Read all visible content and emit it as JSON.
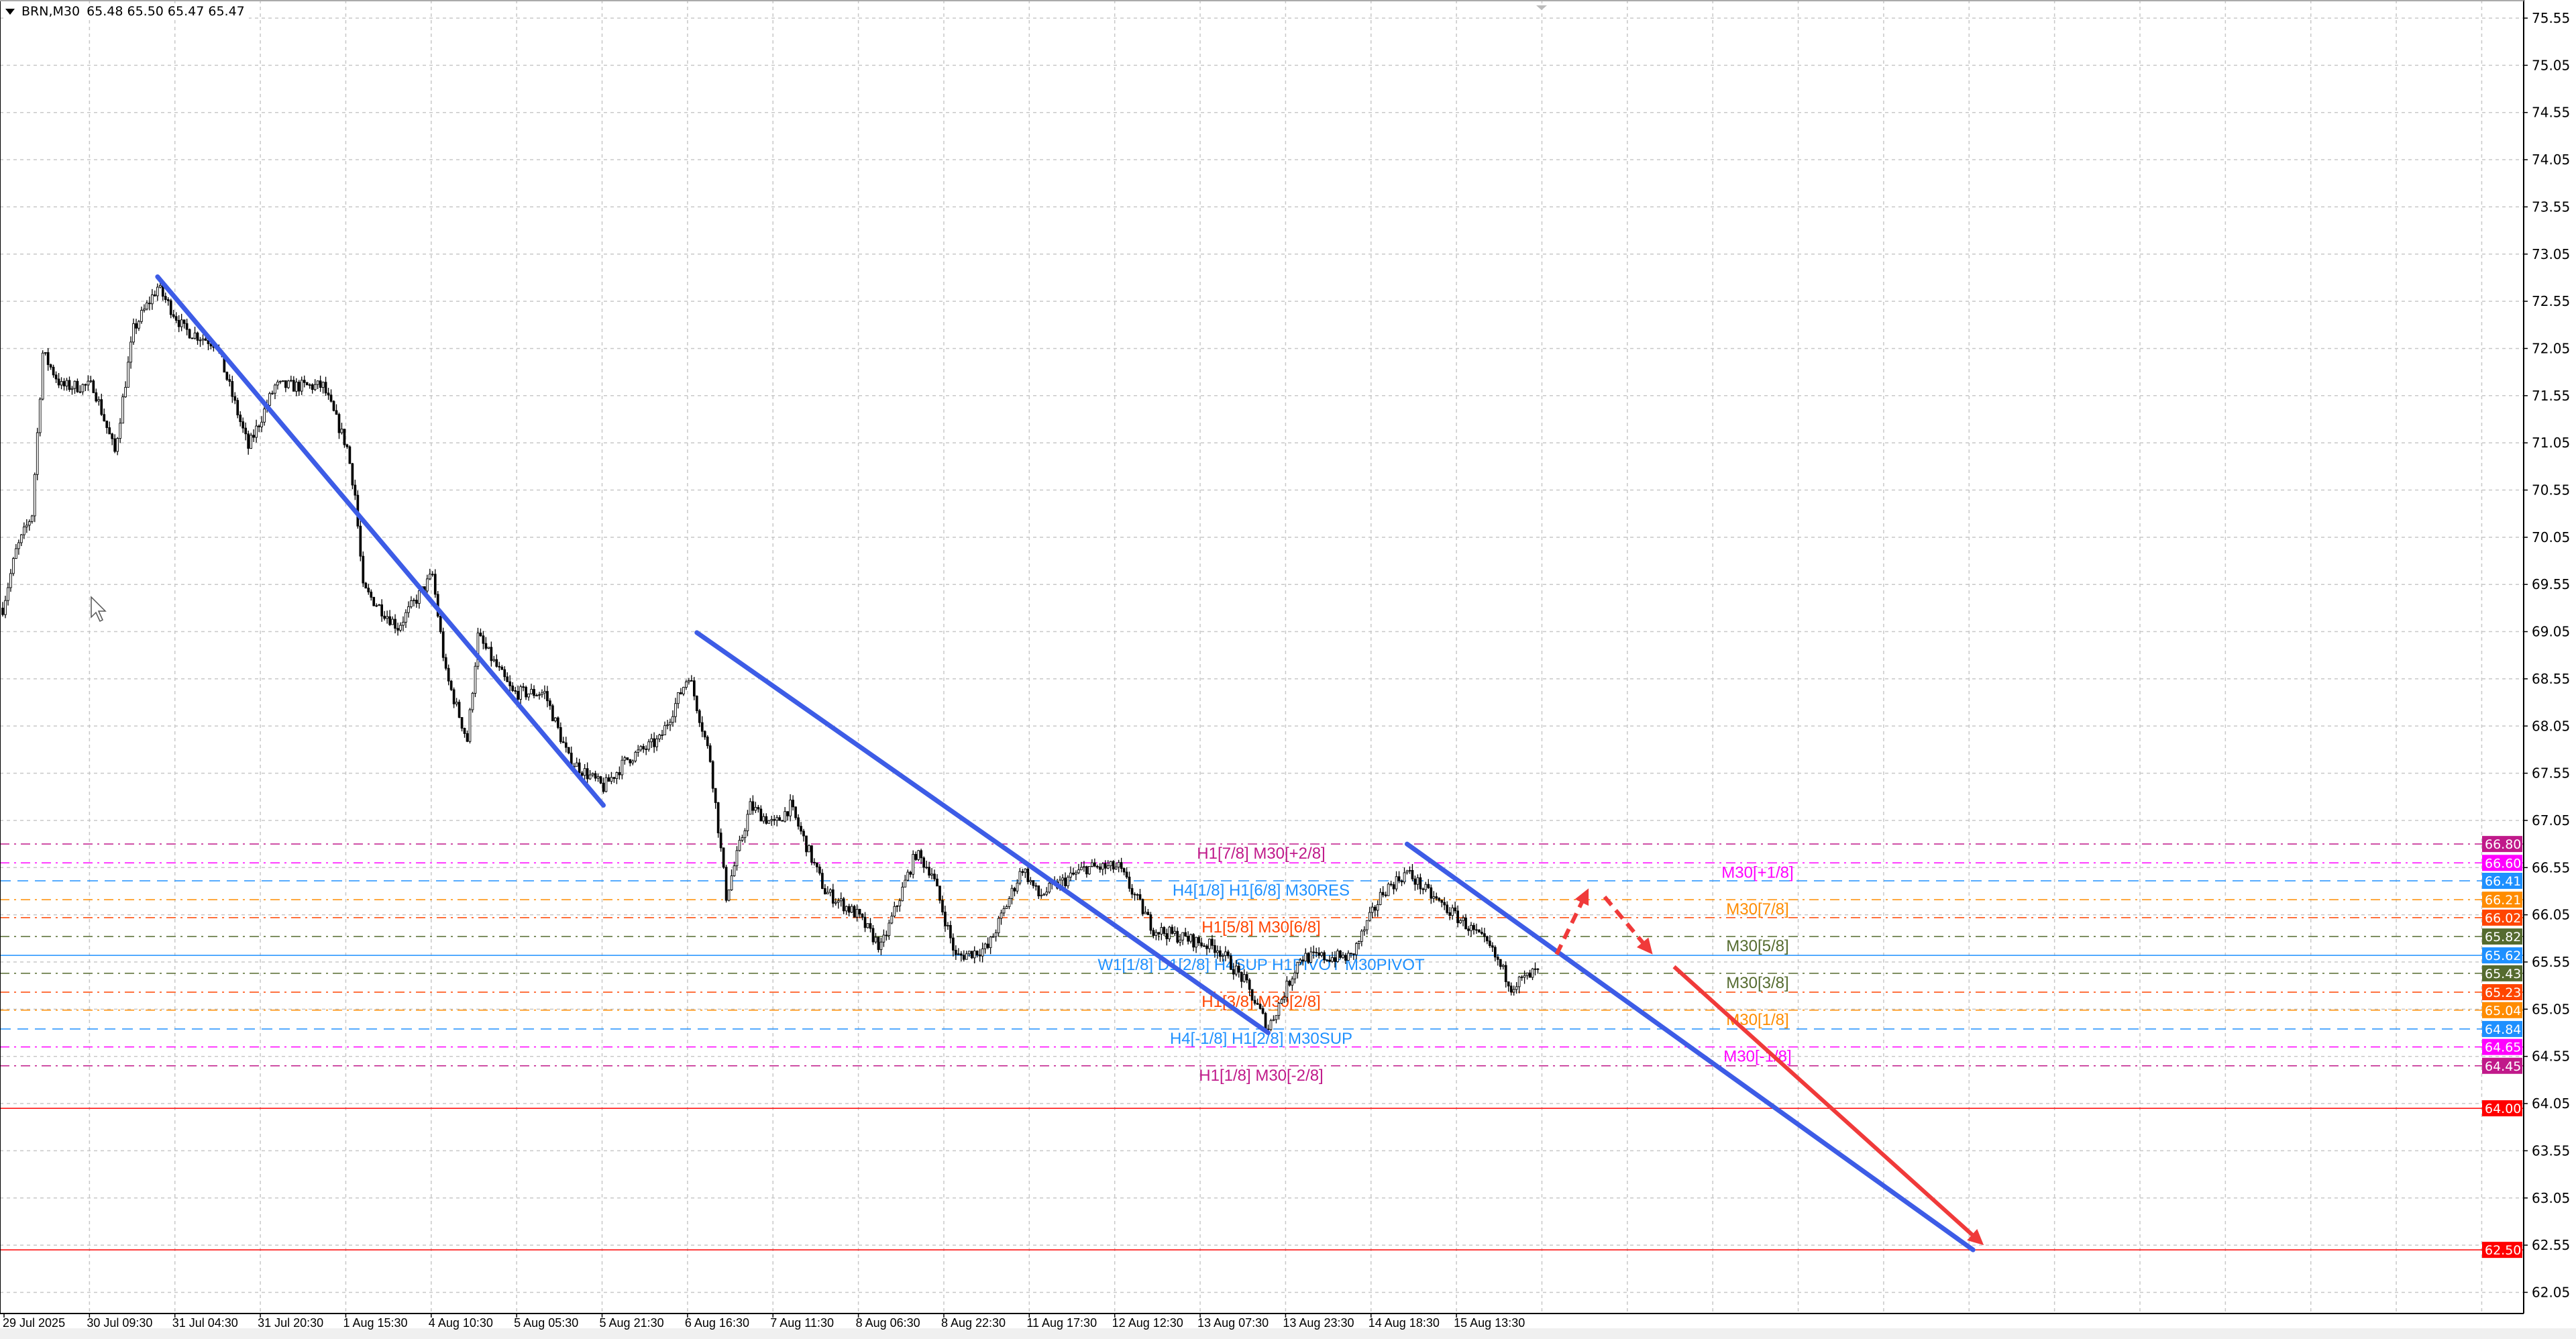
{
  "header": {
    "symbol": "BRN,M30",
    "ohlc": "65.48 65.50 65.47 65.47"
  },
  "colors": {
    "background": "#ffffff",
    "grid": "#c8c8c8",
    "trendline": "#3d5ce6",
    "arrow": "#f03a3a",
    "bull_body": "#ffffff",
    "bear_body": "#000000",
    "outline": "#000000"
  },
  "chart_data": {
    "type": "candlestick",
    "timeframe": "M30",
    "y_ticks": [
      "75.55",
      "75.05",
      "74.55",
      "74.05",
      "73.55",
      "73.05",
      "72.55",
      "72.05",
      "71.55",
      "71.05",
      "70.55",
      "70.05",
      "69.55",
      "69.05",
      "68.55",
      "68.05",
      "67.55",
      "67.05",
      "66.55",
      "66.05",
      "65.55",
      "65.05",
      "64.55",
      "64.05",
      "63.55",
      "63.05",
      "62.55",
      "62.05"
    ],
    "ylim": [
      61.95,
      75.6
    ],
    "x_ticks": [
      "29 Jul 2025",
      "30 Jul 09:30",
      "31 Jul 04:30",
      "31 Jul 20:30",
      "1 Aug 15:30",
      "4 Aug 10:30",
      "5 Aug 05:30",
      "5 Aug 21:30",
      "6 Aug 16:30",
      "7 Aug 11:30",
      "8 Aug 06:30",
      "8 Aug 22:30",
      "11 Aug 17:30",
      "12 Aug 12:30",
      "13 Aug 07:30",
      "13 Aug 23:30",
      "14 Aug 18:30",
      "15 Aug 13:30"
    ],
    "bars_per_x_tick": 32,
    "grid": true,
    "price_path": [
      [
        0,
        69.3
      ],
      [
        5,
        69.9
      ],
      [
        11,
        70.3
      ],
      [
        15,
        72.0
      ],
      [
        22,
        71.65
      ],
      [
        34,
        71.65
      ],
      [
        42,
        70.95
      ],
      [
        49,
        72.25
      ],
      [
        58,
        72.7
      ],
      [
        68,
        72.25
      ],
      [
        80,
        72.1
      ],
      [
        92,
        71.0
      ],
      [
        102,
        71.65
      ],
      [
        120,
        71.65
      ],
      [
        129,
        71.0
      ],
      [
        132,
        70.5
      ],
      [
        135,
        69.5
      ],
      [
        148,
        69.1
      ],
      [
        161,
        69.65
      ],
      [
        166,
        68.6
      ],
      [
        174,
        67.9
      ],
      [
        178,
        69.0
      ],
      [
        191,
        68.4
      ],
      [
        203,
        68.4
      ],
      [
        212,
        67.7
      ],
      [
        225,
        67.4
      ],
      [
        234,
        67.7
      ],
      [
        246,
        67.9
      ],
      [
        257,
        68.6
      ],
      [
        265,
        67.7
      ],
      [
        271,
        66.25
      ],
      [
        280,
        67.2
      ],
      [
        289,
        67.0
      ],
      [
        295,
        67.2
      ],
      [
        308,
        66.3
      ],
      [
        320,
        66.05
      ],
      [
        329,
        65.7
      ],
      [
        342,
        66.7
      ],
      [
        348,
        66.5
      ],
      [
        357,
        65.6
      ],
      [
        369,
        65.7
      ],
      [
        382,
        66.55
      ],
      [
        388,
        66.25
      ],
      [
        406,
        66.55
      ],
      [
        418,
        66.55
      ],
      [
        431,
        65.9
      ],
      [
        455,
        65.7
      ],
      [
        465,
        65.35
      ],
      [
        474,
        64.85
      ],
      [
        486,
        65.6
      ],
      [
        505,
        65.6
      ],
      [
        517,
        66.3
      ],
      [
        526,
        66.5
      ],
      [
        535,
        66.25
      ],
      [
        548,
        65.95
      ],
      [
        557,
        65.7
      ],
      [
        565,
        65.3
      ],
      [
        572,
        65.4
      ],
      [
        575,
        65.47
      ]
    ],
    "current_price": "65.47",
    "levels": [
      {
        "price": "66.80",
        "label": "H1[7/8] M30[+2/8]",
        "color": "#c0198a",
        "style": "dashdot"
      },
      {
        "price": "66.60",
        "label": "M30[+1/8]",
        "color": "#ff00ff",
        "style": "dashdot"
      },
      {
        "price": "66.41",
        "label": "H4[1/8] H1[6/8] M30RES",
        "color": "#1e90ff",
        "style": "dash"
      },
      {
        "price": "66.21",
        "label": "M30[7/8]",
        "color": "#ff8c00",
        "style": "dashdot"
      },
      {
        "price": "66.02",
        "label": "H1[5/8] M30[6/8]",
        "color": "#ff4500",
        "style": "dashdot"
      },
      {
        "price": "65.82",
        "label": "M30[5/8]",
        "color": "#556b2f",
        "style": "dashdot"
      },
      {
        "price": "65.62",
        "label": "W1[1/8] D1[2/8] H4SUP H1PIVOT M30PIVOT",
        "color": "#1e90ff",
        "style": "solid"
      },
      {
        "price": "65.43",
        "label": "M30[3/8]",
        "color": "#556b2f",
        "style": "dashdot"
      },
      {
        "price": "65.23",
        "label": "H1[3/8] M30[2/8]",
        "color": "#ff4500",
        "style": "dashdot"
      },
      {
        "price": "65.04",
        "label": "M30[1/8]",
        "color": "#ff8c00",
        "style": "dashdot"
      },
      {
        "price": "64.84",
        "label": "H4[-1/8] H1[2/8] M30SUP",
        "color": "#1e90ff",
        "style": "dash"
      },
      {
        "price": "64.65",
        "label": "M30[-1/8]",
        "color": "#ff00ff",
        "style": "dashdot"
      },
      {
        "price": "64.45",
        "label": "H1[1/8] M30[-2/8]",
        "color": "#c0198a",
        "style": "dashdot"
      },
      {
        "price": "64.00",
        "label": "",
        "color": "#ff0000",
        "style": "solid"
      },
      {
        "price": "62.50",
        "label": "",
        "color": "#ff0000",
        "style": "solid"
      }
    ],
    "trendlines": [
      {
        "from": [
          58,
          72.81
        ],
        "to": [
          225,
          67.21
        ]
      },
      {
        "from": [
          260,
          69.04
        ],
        "to": [
          474,
          64.8
        ]
      },
      {
        "from": [
          526,
          66.8
        ],
        "to": [
          738,
          62.5
        ]
      }
    ],
    "arrows": [
      {
        "from": [
          582,
          65.63
        ],
        "to": [
          594,
          66.33
        ],
        "dashed": true
      },
      {
        "from": [
          600,
          66.24
        ],
        "to": [
          618,
          65.63
        ],
        "dashed": true
      },
      {
        "from": [
          626,
          65.5
        ],
        "to": [
          742,
          62.55
        ],
        "dashed": false
      }
    ]
  }
}
